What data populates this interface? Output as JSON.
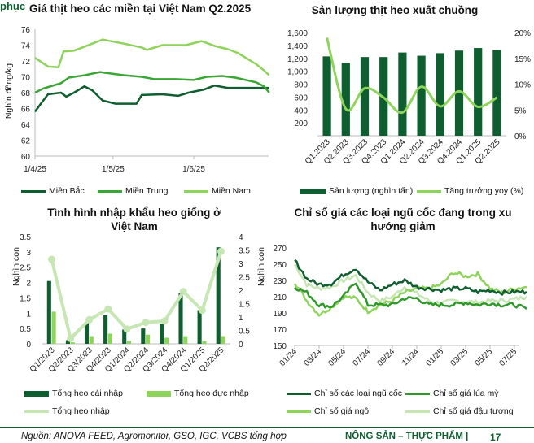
{
  "header": {
    "section_fragment": "phục"
  },
  "colors": {
    "dark": "#0e5e2f",
    "mid": "#3aa635",
    "light": "#8ed35a",
    "pale": "#c6e6b4"
  },
  "chart_data": [
    {
      "type": "line",
      "title": "Giá thịt heo các miền tại Việt Nam Q2.2025",
      "ylabel": "Nghìn đồng/kg",
      "ylim": [
        60,
        76
      ],
      "yticks": [
        "60",
        "62",
        "64",
        "66",
        "68",
        "70",
        "72",
        "74",
        "76"
      ],
      "xticks": [
        "1/4/25",
        "1/5/25",
        "1/6/25"
      ],
      "legend_position": "bottom",
      "series": [
        {
          "name": "Miền Bắc",
          "dates": [
            "2025-04-01",
            "2025-04-03",
            "2025-04-06",
            "2025-04-11",
            "2025-04-13",
            "2025-04-16",
            "2025-04-20",
            "2025-04-23",
            "2025-04-27",
            "2025-05-02",
            "2025-05-10",
            "2025-05-12",
            "2025-05-20",
            "2025-05-26",
            "2025-05-30",
            "2025-06-05",
            "2025-06-09",
            "2025-06-14",
            "2025-06-30"
          ],
          "values": [
            65.6,
            66.5,
            67.8,
            68,
            67.5,
            68,
            68.8,
            68.3,
            67,
            66.6,
            66.6,
            67.7,
            67.8,
            67.6,
            68,
            68.4,
            68.9,
            68.6,
            68.6
          ]
        },
        {
          "name": "Miền Trung",
          "dates": [
            "2025-04-01",
            "2025-04-04",
            "2025-04-11",
            "2025-04-14",
            "2025-04-20",
            "2025-04-26",
            "2025-05-05",
            "2025-05-12",
            "2025-05-17",
            "2025-05-25",
            "2025-06-01",
            "2025-06-06",
            "2025-06-12",
            "2025-06-17",
            "2025-06-21",
            "2025-06-25",
            "2025-06-28",
            "2025-06-30"
          ],
          "values": [
            68,
            68.5,
            69.2,
            69.9,
            70.2,
            70.6,
            70.2,
            70,
            69.7,
            69.7,
            69.6,
            70,
            70.1,
            69.9,
            69.6,
            69.3,
            68.8,
            68
          ]
        },
        {
          "name": "Miền Nam",
          "dates": [
            "2025-04-01",
            "2025-04-06",
            "2025-04-10",
            "2025-04-12",
            "2025-04-16",
            "2025-04-20",
            "2025-04-27",
            "2025-05-05",
            "2025-05-12",
            "2025-05-14",
            "2025-05-20",
            "2025-05-29",
            "2025-06-04",
            "2025-06-09",
            "2025-06-14",
            "2025-06-18",
            "2025-06-22",
            "2025-06-25",
            "2025-06-28",
            "2025-06-30"
          ],
          "values": [
            72.4,
            71.3,
            71.2,
            73.2,
            73.3,
            73.8,
            74.7,
            74.2,
            73.7,
            73.4,
            74,
            74,
            74.5,
            73.9,
            73.5,
            73,
            72.2,
            71.6,
            70.8,
            70.2
          ]
        }
      ]
    },
    {
      "type": "bar",
      "title": "Sản lượng thịt heo xuất chuồng",
      "ylim": [
        0,
        1600
      ],
      "yticks": [
        "200",
        "400",
        "600",
        "800",
        "1,000",
        "1,200",
        "1,400",
        "1,600"
      ],
      "y2lim": [
        0,
        20
      ],
      "y2ticks": [
        "0%",
        "5%",
        "10%",
        "15%",
        "20%"
      ],
      "categories": [
        "Q1.2023",
        "Q2.2023",
        "Q3.2023",
        "Q4.2023",
        "Q1.2024",
        "Q2.2024",
        "Q3.2024",
        "Q4.2024",
        "Q1.2025",
        "Q2.2025"
      ],
      "series": [
        {
          "name": "Sản lượng (nghìn tấn)",
          "kind": "bar",
          "axis": "left",
          "values": [
            1230,
            1130,
            1220,
            1220,
            1290,
            1240,
            1280,
            1320,
            1360,
            1330
          ]
        },
        {
          "name": "Tăng trưởng yoy (%)",
          "kind": "line",
          "axis": "right",
          "values": [
            19,
            5.2,
            9.2,
            7.4,
            4.5,
            9.5,
            5.7,
            8.6,
            5.6,
            7.4
          ]
        }
      ]
    },
    {
      "type": "bar",
      "title": "Tình hình nhập khẩu heo giống ở Việt Nam",
      "ylabel": "Nghìn con",
      "y2label": "Nghìn con",
      "ylim": [
        0,
        3.5
      ],
      "yticks": [
        "0",
        "0.5",
        "1",
        "1.5",
        "2",
        "2.5",
        "3",
        "3.5"
      ],
      "y2lim": [
        0,
        4
      ],
      "y2ticks": [
        "0",
        "0.5",
        "1",
        "1.5",
        "2",
        "2.5",
        "3",
        "3.5",
        "4"
      ],
      "categories": [
        "Q1/2023",
        "Q2/2023",
        "Q3/2023",
        "Q4/2023",
        "Q1/2024",
        "Q2/2024",
        "Q3/2024",
        "Q4/2024",
        "Q1/2025",
        "Q2/2025"
      ],
      "series": [
        {
          "name": "Tổng heo cái nhập",
          "kind": "bar",
          "axis": "left",
          "values": [
            2.05,
            0.12,
            0.68,
            0.93,
            0.47,
            0.5,
            0.65,
            1.65,
            1.1,
            3.15
          ]
        },
        {
          "name": "Tổng heo đực nhập",
          "kind": "bar",
          "axis": "left",
          "values": [
            1.05,
            0.05,
            0.25,
            0.33,
            0.1,
            0.3,
            0.2,
            0.25,
            0.08,
            0.25
          ]
        },
        {
          "name": "Tổng heo nhập",
          "kind": "line",
          "axis": "right",
          "values": [
            3.15,
            0.2,
            0.9,
            1.3,
            0.55,
            0.8,
            0.85,
            1.95,
            1.25,
            3.45
          ]
        }
      ]
    },
    {
      "type": "line",
      "title": "Chỉ số giá các loại ngũ cốc đang trong xu hướng giảm",
      "ylim": [
        150,
        270
      ],
      "yticks": [
        "150",
        "170",
        "190",
        "210",
        "230",
        "250",
        "270"
      ],
      "xticks": [
        "01/24",
        "03/24",
        "05/24",
        "07/24",
        "09/24",
        "11/24",
        "01/25",
        "03/25",
        "05/25",
        "07/25"
      ],
      "months": [
        "01/24",
        "02/24",
        "03/24",
        "04/24",
        "05/24",
        "06/24",
        "07/24",
        "08/24",
        "09/24",
        "10/24",
        "11/24",
        "12/24",
        "01/25",
        "02/25",
        "03/25",
        "04/25",
        "05/25",
        "06/25",
        "07/25",
        "08/25"
      ],
      "series": [
        {
          "name": "Chỉ số các loại ngũ cốc",
          "values": [
            255,
            232,
            225,
            226,
            237,
            245,
            228,
            218,
            225,
            230,
            222,
            220,
            218,
            220,
            220,
            216,
            218,
            215,
            216,
            216
          ]
        },
        {
          "name": "Chỉ số giá lúa mỳ",
          "values": [
            222,
            215,
            200,
            198,
            210,
            228,
            200,
            200,
            200,
            208,
            208,
            200,
            200,
            200,
            203,
            200,
            202,
            200,
            200,
            195
          ]
        },
        {
          "name": "Chỉ số giá ngô",
          "values": [
            228,
            205,
            188,
            197,
            210,
            208,
            192,
            200,
            205,
            215,
            220,
            220,
            225,
            240,
            235,
            238,
            220,
            215,
            220,
            222
          ]
        },
        {
          "name": "Chỉ số giá đậu tương",
          "values": [
            250,
            225,
            220,
            222,
            230,
            236,
            215,
            205,
            210,
            222,
            214,
            205,
            202,
            205,
            204,
            203,
            205,
            205,
            207,
            210
          ]
        }
      ]
    }
  ],
  "footer": {
    "source": "Nguồn: ANOVA FEED, Agromonitor, GSO, IGC, VCBS tổng hợp",
    "section": "NÔNG SẢN – THỰC PHẨM |",
    "page": "17"
  }
}
